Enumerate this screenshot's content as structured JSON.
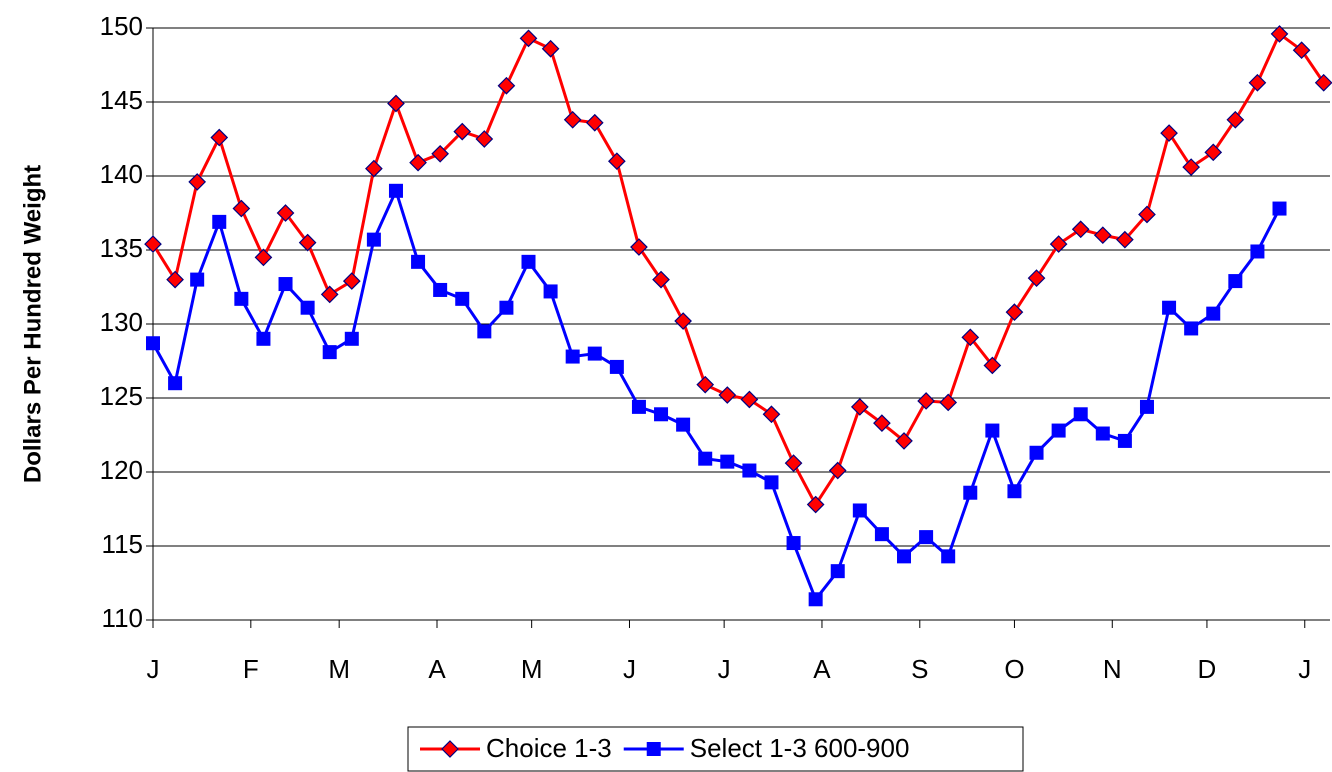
{
  "chart_data": {
    "type": "line",
    "y_label": "Dollars Per Hundred Weight",
    "x": [
      0,
      7,
      14,
      21,
      28,
      35,
      42,
      49,
      56,
      63,
      70,
      77,
      84,
      91,
      98,
      105,
      112,
      119,
      126,
      133,
      140,
      147,
      154,
      161,
      168,
      175,
      182,
      189,
      196,
      203,
      210,
      217,
      224,
      231,
      238,
      245,
      252,
      259,
      266,
      273,
      280,
      287,
      294,
      301,
      308,
      315,
      322,
      329,
      336,
      343,
      350,
      357,
      364,
      371
    ],
    "series": [
      {
        "name": "Choice 1-3",
        "color": "#ff0000",
        "marker": "diamond",
        "marker_color": "#ff0000",
        "values": [
          135.4,
          133.0,
          139.6,
          142.6,
          137.8,
          134.5,
          137.5,
          135.5,
          132.0,
          132.9,
          140.5,
          144.9,
          140.9,
          141.5,
          143.0,
          142.5,
          146.1,
          149.3,
          148.6,
          143.8,
          143.6,
          141.0,
          135.2,
          133.0,
          130.2,
          125.9,
          125.2,
          124.9,
          123.9,
          120.6,
          117.8,
          120.1,
          124.4,
          123.3,
          122.1,
          124.8,
          124.7,
          129.1,
          127.2,
          130.8,
          133.1,
          135.4,
          136.4,
          136.0,
          135.7,
          137.4,
          142.9,
          140.6,
          141.6,
          143.8,
          146.3,
          149.6,
          148.5,
          146.3
        ]
      },
      {
        "name": "Select 1-3 600-900",
        "color": "#0000ff",
        "marker": "square",
        "marker_color": "#0000ff",
        "values": [
          128.7,
          126.0,
          133.0,
          136.9,
          131.7,
          129.0,
          132.7,
          131.1,
          128.1,
          129.0,
          135.7,
          139.0,
          134.2,
          132.3,
          131.7,
          129.5,
          131.1,
          134.2,
          132.2,
          127.8,
          128.0,
          127.1,
          124.4,
          123.9,
          123.2,
          120.9,
          120.7,
          120.1,
          119.3,
          115.2,
          111.4,
          113.3,
          117.4,
          115.8,
          114.3,
          115.6,
          114.3,
          118.6,
          122.8,
          118.7,
          121.3,
          122.8,
          123.9,
          122.6,
          122.1,
          124.4,
          131.1,
          129.7,
          130.7,
          132.9,
          134.9,
          137.8,
          null,
          null
        ]
      }
    ],
    "xlim": [
      0,
      373
    ],
    "xticks": [
      {
        "value": 0,
        "label": "J"
      },
      {
        "value": 31,
        "label": "F"
      },
      {
        "value": 59,
        "label": "M"
      },
      {
        "value": 90,
        "label": "A"
      },
      {
        "value": 120,
        "label": "M"
      },
      {
        "value": 151,
        "label": "J"
      },
      {
        "value": 181,
        "label": "J"
      },
      {
        "value": 212,
        "label": "A"
      },
      {
        "value": 243,
        "label": "S"
      },
      {
        "value": 273,
        "label": "O"
      },
      {
        "value": 304,
        "label": "N"
      },
      {
        "value": 334,
        "label": "D"
      },
      {
        "value": 365,
        "label": "J"
      }
    ],
    "ylim": [
      110,
      150
    ],
    "yticks": [
      110,
      115,
      120,
      125,
      130,
      135,
      140,
      145,
      150
    ],
    "grid": true,
    "legend": "bottom"
  }
}
